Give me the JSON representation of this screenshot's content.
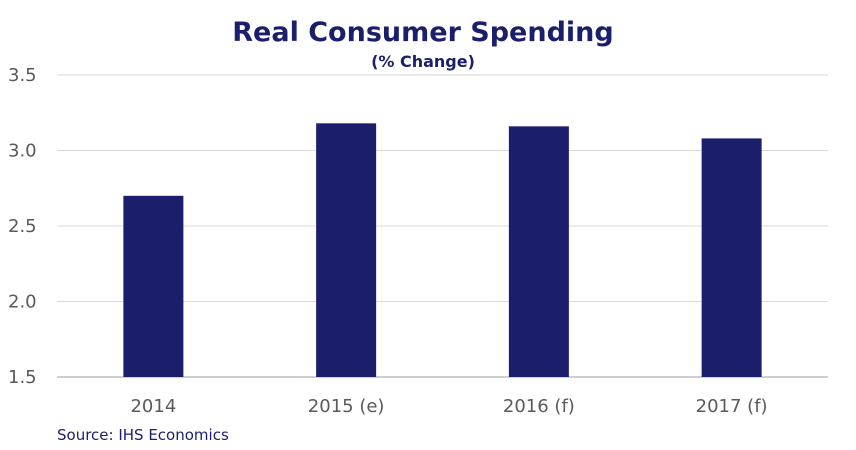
{
  "chart_data": {
    "type": "bar",
    "title": "Real Consumer Spending",
    "subtitle": "(% Change)",
    "categories": [
      "2014",
      "2015 (e)",
      "2016 (f)",
      "2017 (f)"
    ],
    "values": [
      2.7,
      3.18,
      3.16,
      3.08
    ],
    "ylim": [
      1.5,
      3.5
    ],
    "yticks": [
      "1.5",
      "2.0",
      "2.5",
      "3.0",
      "3.5"
    ],
    "xlabel": "",
    "ylabel": "",
    "grid": true,
    "legend": "none",
    "source": "Source: IHS Economics",
    "colors": {
      "bar": "#1b1f6b",
      "title": "#1b1f6b",
      "text": "#5a5a5a",
      "grid": "#d9d9d9",
      "axis": "#bfbfbf"
    }
  }
}
